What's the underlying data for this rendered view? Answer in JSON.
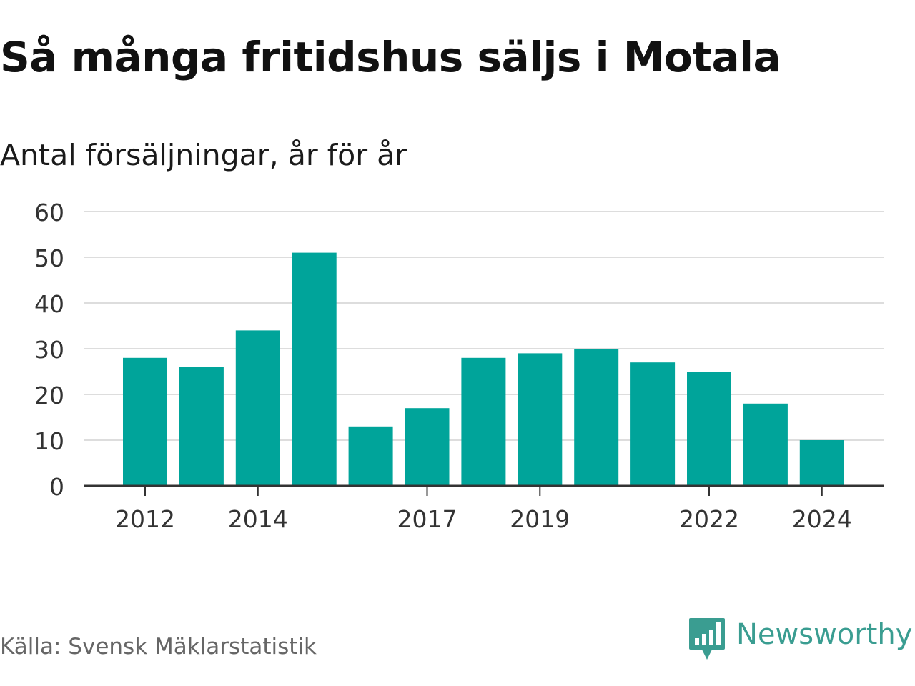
{
  "title": "Så många fritidshus säljs i Motala",
  "subtitle": "Antal försäljningar, år för år",
  "source": "Källa: Svensk Mäklarstatistik",
  "brand": {
    "name": "Newsworthy",
    "logo_icon": "newsworthy-bar-chart-icon",
    "color": "#3a9d91"
  },
  "colors": {
    "bar": "#00a49a",
    "grid": "#dddddd",
    "axis": "#333333",
    "tick_text": "#333333"
  },
  "chart_data": {
    "type": "bar",
    "categories": [
      "2012",
      "2013",
      "2014",
      "2015",
      "2016",
      "2017",
      "2018",
      "2019",
      "2020",
      "2021",
      "2022",
      "2023",
      "2024"
    ],
    "values": [
      28,
      26,
      34,
      51,
      13,
      17,
      28,
      29,
      30,
      27,
      25,
      18,
      10
    ],
    "x_tick_labels": [
      "2012",
      "2014",
      "2017",
      "2019",
      "2022",
      "2024"
    ],
    "y_ticks": [
      0,
      10,
      20,
      30,
      40,
      50,
      60
    ],
    "ylim": [
      0,
      60
    ],
    "grid": true,
    "title": "Så många fritidshus säljs i Motala",
    "subtitle": "Antal försäljningar, år för år",
    "xlabel": "",
    "ylabel": ""
  }
}
